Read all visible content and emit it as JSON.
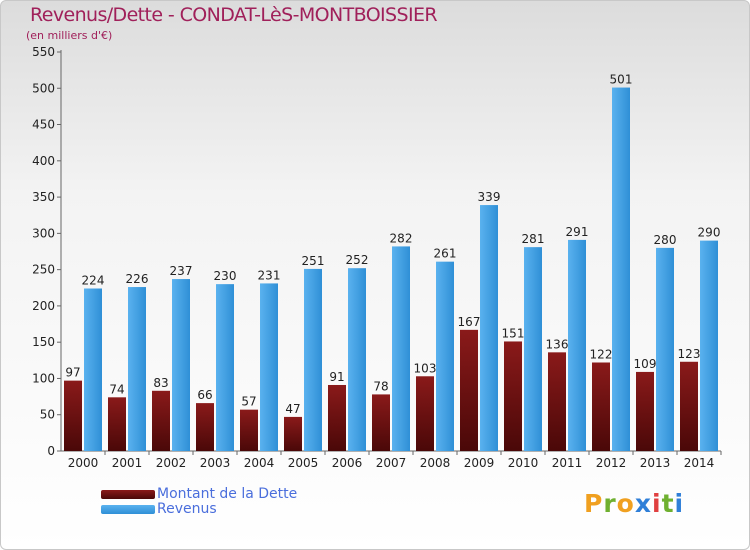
{
  "chart": {
    "title": "Revenus/Dette - CONDAT-LèS-MONTBOISSIER",
    "subtitle": "(en milliers d'€)"
  },
  "legend": {
    "items": [
      {
        "label": "Montant de la Dette",
        "color": "#7a1212"
      },
      {
        "label": "Revenus",
        "color": "#3d9be0"
      }
    ]
  },
  "brand": {
    "letters": [
      "P",
      "r",
      "o",
      "x",
      "i",
      "t",
      "i"
    ],
    "colors": [
      "#f0a020",
      "#6fb030",
      "#f0a020",
      "#2f7fd8",
      "#e04040",
      "#6fb030",
      "#2f7fd8"
    ]
  },
  "chart_data": {
    "type": "bar",
    "title": "Revenus/Dette - CONDAT-LèS-MONTBOISSIER",
    "subtitle": "(en milliers d'€)",
    "categories": [
      "2000",
      "2001",
      "2002",
      "2003",
      "2004",
      "2005",
      "2006",
      "2007",
      "2008",
      "2009",
      "2010",
      "2011",
      "2012",
      "2013",
      "2014"
    ],
    "series": [
      {
        "name": "Montant de la Dette",
        "color": "#7a1212",
        "values": [
          97,
          74,
          83,
          66,
          57,
          47,
          91,
          78,
          103,
          167,
          151,
          136,
          122,
          109,
          123
        ]
      },
      {
        "name": "Revenus",
        "color": "#3d9be0",
        "values": [
          224,
          226,
          237,
          230,
          231,
          251,
          252,
          282,
          261,
          339,
          281,
          291,
          501,
          280,
          290
        ]
      }
    ],
    "ylim": [
      0,
      550
    ],
    "yticks": [
      0,
      50,
      100,
      150,
      200,
      250,
      300,
      350,
      400,
      450,
      500,
      550
    ],
    "grid": false,
    "legend_position": "bottom-left"
  }
}
